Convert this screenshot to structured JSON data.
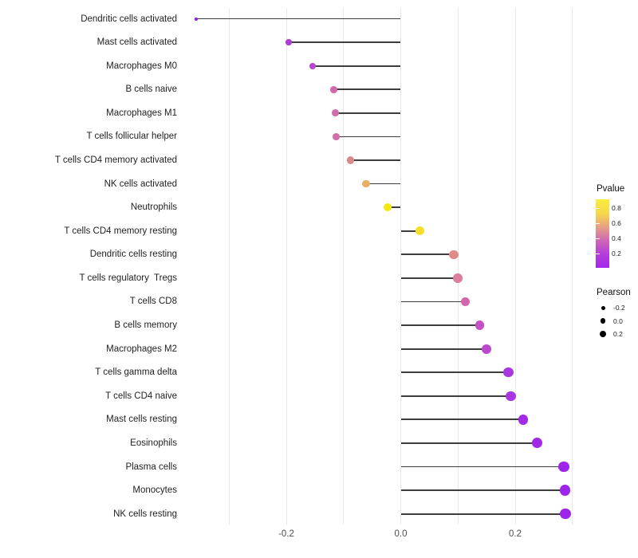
{
  "chart_data": {
    "type": "scatter",
    "subtype": "lollipop",
    "orientation": "horizontal",
    "title": "",
    "xlabel": "",
    "ylabel": "",
    "xlim": [
      -0.37,
      0.33
    ],
    "grid": true,
    "gridline_values": [
      -0.3,
      -0.2,
      -0.1,
      0.0,
      0.1,
      0.2,
      0.3
    ],
    "x_ticks": [
      {
        "label": "-0.2",
        "value": -0.2
      },
      {
        "label": "0.0",
        "value": 0.0
      },
      {
        "label": "0.2",
        "value": 0.2
      }
    ],
    "points": [
      {
        "label": "Dendritic cells activated",
        "pearson": -0.358,
        "pvalue_est": 0.02,
        "color": "#8a20d6"
      },
      {
        "label": "Mast cells activated",
        "pearson": -0.196,
        "pvalue_est": 0.19,
        "color": "#ae3dd6"
      },
      {
        "label": "Macrophages M0",
        "pearson": -0.154,
        "pvalue_est": 0.24,
        "color": "#b846cc"
      },
      {
        "label": "B cells naive",
        "pearson": -0.117,
        "pvalue_est": 0.42,
        "color": "#d466ab"
      },
      {
        "label": "Macrophages M1",
        "pearson": -0.114,
        "pvalue_est": 0.43,
        "color": "#d46ca6"
      },
      {
        "label": "T cells follicular helper",
        "pearson": -0.113,
        "pvalue_est": 0.43,
        "color": "#d56ea4"
      },
      {
        "label": "T cells CD4 memory activated",
        "pearson": -0.088,
        "pvalue_est": 0.55,
        "color": "#db8a87"
      },
      {
        "label": "NK cells activated",
        "pearson": -0.061,
        "pvalue_est": 0.66,
        "color": "#eaae62"
      },
      {
        "label": "Neutrophils",
        "pearson": -0.023,
        "pvalue_est": 0.92,
        "color": "#f3e90f"
      },
      {
        "label": "T cells CD4 memory resting",
        "pearson": 0.033,
        "pvalue_est": 0.85,
        "color": "#f5df2b"
      },
      {
        "label": "Dendritic cells resting",
        "pearson": 0.093,
        "pvalue_est": 0.57,
        "color": "#e08b89"
      },
      {
        "label": "T cells regulatory  Tregs",
        "pearson": 0.1,
        "pvalue_est": 0.5,
        "color": "#db7f9d"
      },
      {
        "label": "T cells CD8",
        "pearson": 0.113,
        "pvalue_est": 0.41,
        "color": "#d466ae"
      },
      {
        "label": "B cells memory",
        "pearson": 0.138,
        "pvalue_est": 0.3,
        "color": "#c451c6"
      },
      {
        "label": "Macrophages M2",
        "pearson": 0.15,
        "pvalue_est": 0.25,
        "color": "#bb48cf"
      },
      {
        "label": "T cells gamma delta",
        "pearson": 0.188,
        "pvalue_est": 0.13,
        "color": "#a837e1"
      },
      {
        "label": "T cells CD4 naive",
        "pearson": 0.192,
        "pvalue_est": 0.13,
        "color": "#a737e1"
      },
      {
        "label": "Mast cells resting",
        "pearson": 0.214,
        "pvalue_est": 0.09,
        "color": "#a22ce5"
      },
      {
        "label": "Eosinophils",
        "pearson": 0.238,
        "pvalue_est": 0.07,
        "color": "#a028e7"
      },
      {
        "label": "Plasma cells",
        "pearson": 0.285,
        "pvalue_est": 0.04,
        "color": "#9d24e9"
      },
      {
        "label": "Monocytes",
        "pearson": 0.287,
        "pvalue_est": 0.04,
        "color": "#9d24e9"
      },
      {
        "label": "NK cells resting",
        "pearson": 0.288,
        "pvalue_est": 0.04,
        "color": "#9d24e9"
      }
    ],
    "legend": {
      "position": "right",
      "pvalue": {
        "title": "Pvalue",
        "domain": [
          0.014,
          0.92
        ],
        "ticks": [
          {
            "label": "0.8",
            "value": 0.8
          },
          {
            "label": "0.6",
            "value": 0.6
          },
          {
            "label": "0.4",
            "value": 0.4
          },
          {
            "label": "0.2",
            "value": 0.2
          }
        ],
        "gradient": [
          {
            "offset": 0.0,
            "color": "#a228ec"
          },
          {
            "offset": 0.21,
            "color": "#b53fd9"
          },
          {
            "offset": 0.4,
            "color": "#cf67b5"
          },
          {
            "offset": 0.6,
            "color": "#e9a083"
          },
          {
            "offset": 0.79,
            "color": "#f5d74b"
          },
          {
            "offset": 1.0,
            "color": "#faed3c"
          }
        ]
      },
      "pearson": {
        "title": "Pearson",
        "entries": [
          {
            "label": "-0.2",
            "value": -0.2,
            "size": 5.0
          },
          {
            "label": "0.0",
            "value": 0.0,
            "size": 6.8
          },
          {
            "label": "0.2",
            "value": 0.2,
            "size": 8.7
          }
        ]
      }
    },
    "style": {
      "stem_color": "#3d3d3d",
      "gridline_color": "#e9e9e9",
      "axis_text_color": "#4d4d4d",
      "label_text_color": "#1f1f1f",
      "background": "#ffffff"
    }
  }
}
